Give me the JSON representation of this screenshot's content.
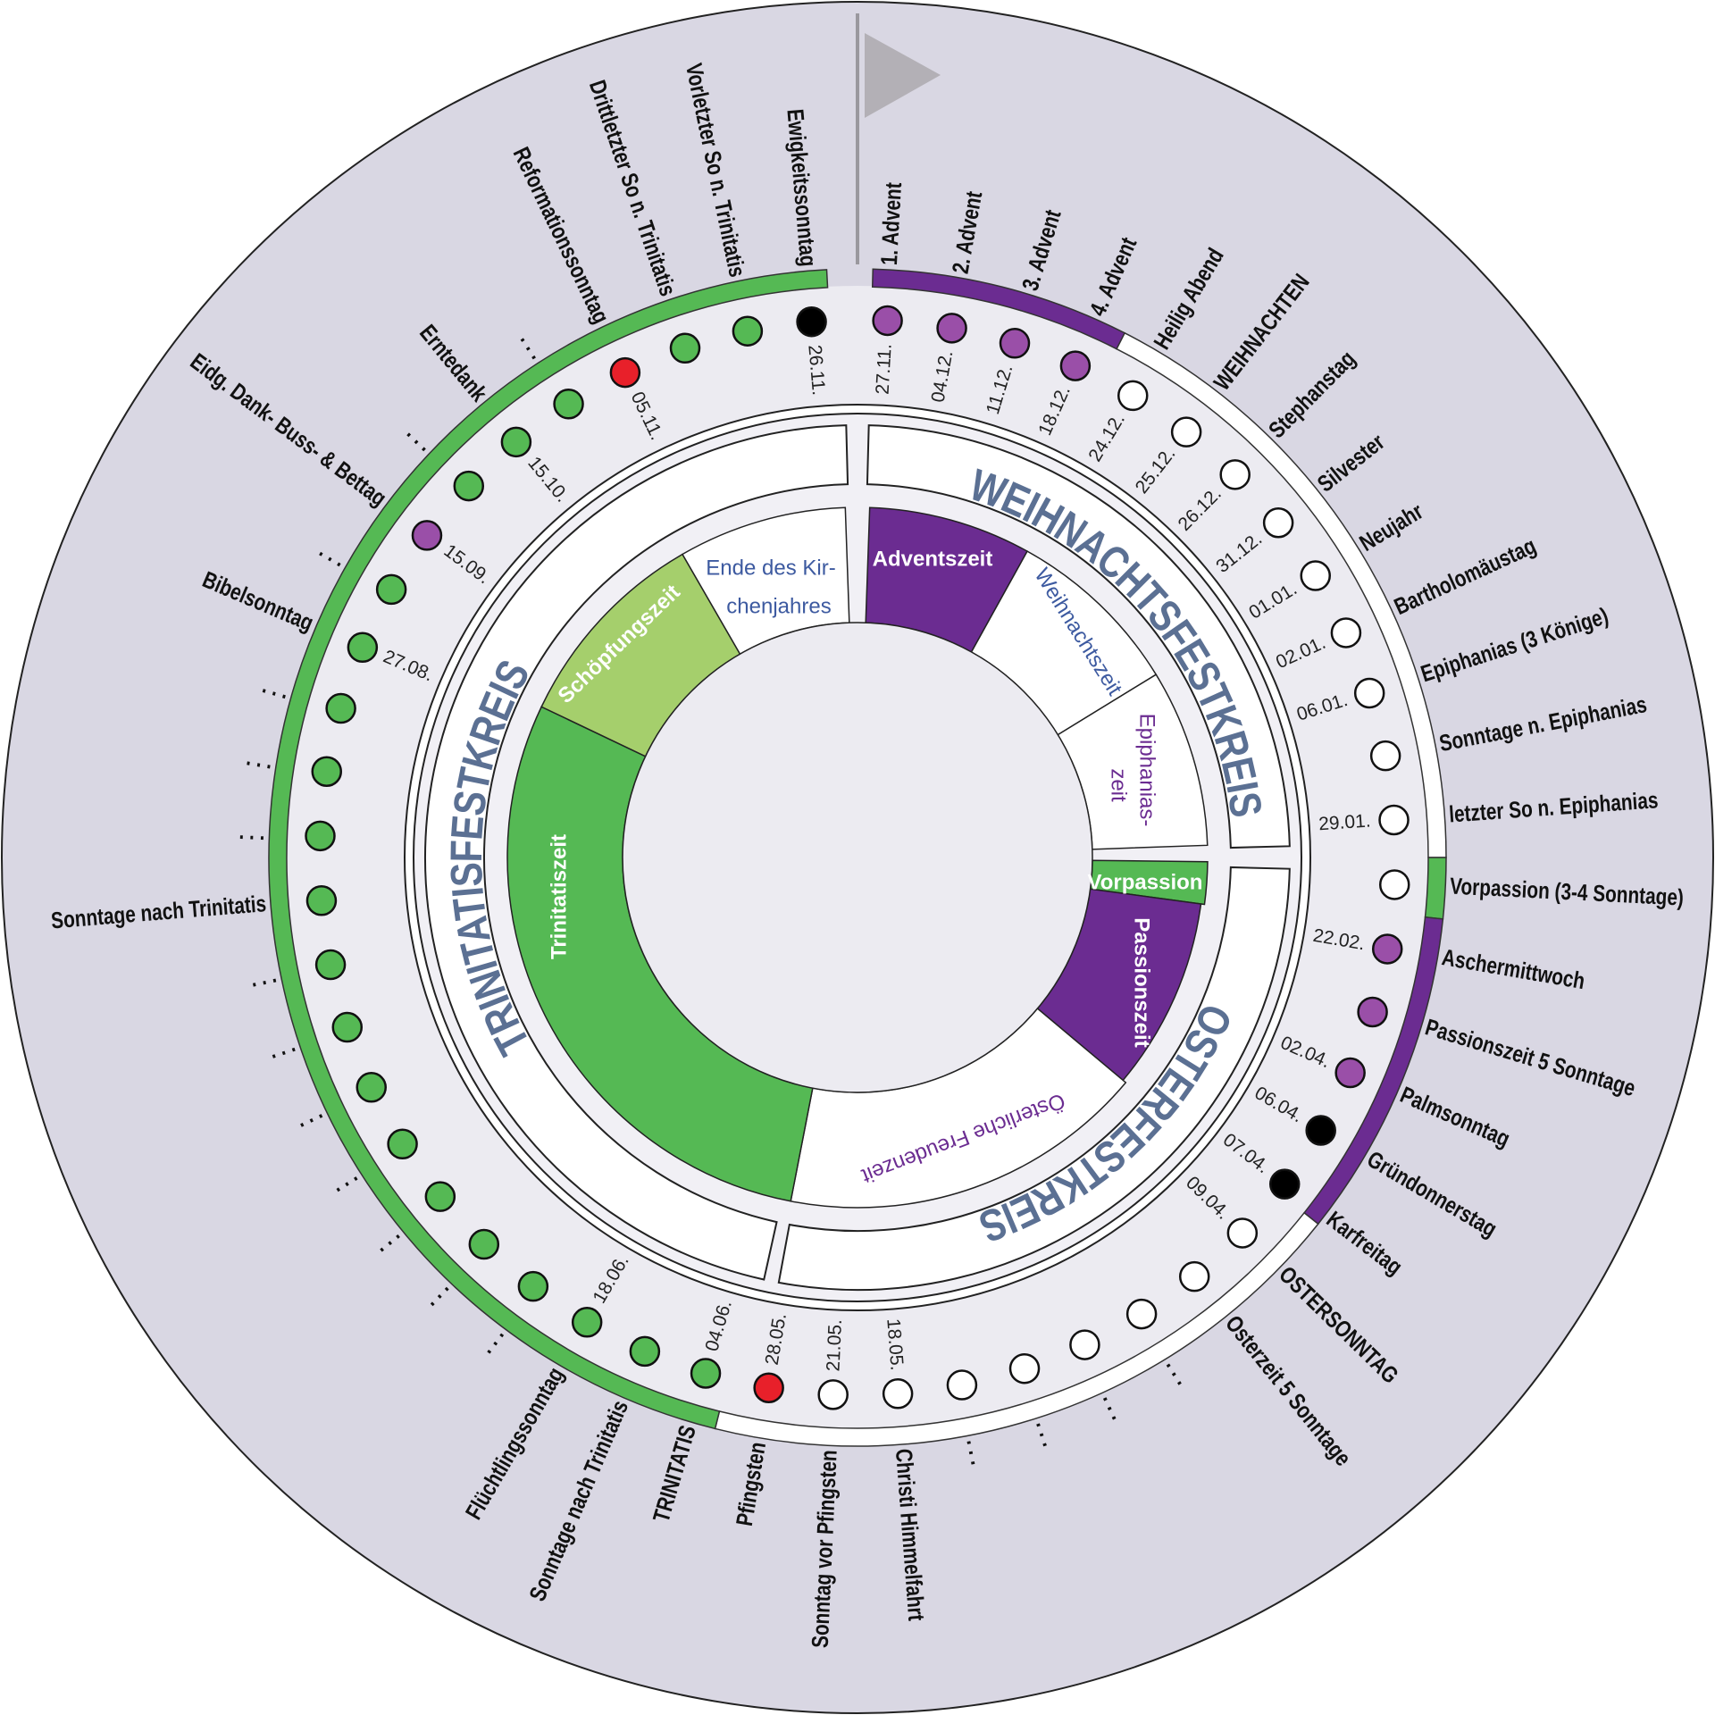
{
  "sundays": [
    {
      "date": "27.11.",
      "label": "1. Advent",
      "color": "#9a4fa8"
    },
    {
      "date": "04.12.",
      "label": "2. Advent",
      "color": "#9a4fa8"
    },
    {
      "date": "11.12.",
      "label": "3. Advent",
      "color": "#9a4fa8"
    },
    {
      "date": "18.12.",
      "label": "4. Advent",
      "color": "#9a4fa8"
    },
    {
      "date": "24.12.",
      "label": "Heilig Abend",
      "color": "#ffffff"
    },
    {
      "date": "25.12.",
      "label": "WEIHNACHTEN",
      "color": "#ffffff"
    },
    {
      "date": "26.12.",
      "label": "Stephanstag",
      "color": "#ffffff"
    },
    {
      "date": "31.12.",
      "label": "Silvester",
      "color": "#ffffff"
    },
    {
      "date": "01.01.",
      "label": "Neujahr",
      "color": "#ffffff"
    },
    {
      "date": "02.01.",
      "label": "Bartholomäustag",
      "color": "#ffffff"
    },
    {
      "date": "06.01.",
      "label": "Epiphanias (3 Könige)",
      "color": "#ffffff"
    },
    {
      "label": "Sonntage n. Epiphanias",
      "color": "#ffffff"
    },
    {
      "date": "29.01.",
      "label": "letzter So n. Epiphanias",
      "color": "#ffffff"
    },
    {
      "label": "Vorpassion (3-4 Sonntage)",
      "color": "#ffffff"
    },
    {
      "date": "22.02.",
      "label": "Aschermittwoch",
      "color": "#9a4fa8"
    },
    {
      "label": "Passionszeit 5 Sonntage",
      "color": "#9a4fa8"
    },
    {
      "date": "02.04.",
      "label": "Palmsonntag",
      "color": "#9a4fa8"
    },
    {
      "date": "06.04.",
      "label": "Gründonnerstag",
      "color": "#000000"
    },
    {
      "date": "07.04.",
      "label": "Karfreitag",
      "color": "#000000"
    },
    {
      "date": "09.04.",
      "label": "OSTERSONNTAG",
      "color": "#ffffff"
    },
    {
      "label": "Osterzeit 5 Sonntage",
      "color": "#ffffff"
    },
    {
      "label": ". . .",
      "color": "#ffffff"
    },
    {
      "label": ". . .",
      "color": "#ffffff"
    },
    {
      "label": ". . .",
      "color": "#ffffff"
    },
    {
      "label": ". . .",
      "color": "#ffffff"
    },
    {
      "date": "18.05.",
      "label": "Christi Himmelfahrt",
      "color": "#ffffff"
    },
    {
      "date": "21.05.",
      "label": "Sonntag vor Pfingsten",
      "color": "#ffffff"
    },
    {
      "date": "28.05.",
      "label": "Pfingsten",
      "color": "#e8202a"
    },
    {
      "date": "04.06.",
      "label": "TRINITATIS",
      "color": "#55b954"
    },
    {
      "label": "Sonntage nach Trinitatis",
      "color": "#55b954"
    },
    {
      "date": "18.06.",
      "label": "Flüchtlingssonntag",
      "color": "#55b954"
    },
    {
      "label": ". . .",
      "color": "#55b954"
    },
    {
      "label": ". . .",
      "color": "#55b954"
    },
    {
      "label": ". . .",
      "color": "#55b954"
    },
    {
      "label": ". . .",
      "color": "#55b954"
    },
    {
      "label": ". . .",
      "color": "#55b954"
    },
    {
      "label": ". . .",
      "color": "#55b954"
    },
    {
      "label": ". . .",
      "color": "#55b954"
    },
    {
      "label": "Sonntage nach Trinitatis",
      "color": "#55b954"
    },
    {
      "label": ". . .",
      "color": "#55b954"
    },
    {
      "label": ". . .",
      "color": "#55b954"
    },
    {
      "label": ". . .",
      "color": "#55b954"
    },
    {
      "date": "27.08.",
      "label": "Bibelsonntag",
      "color": "#55b954"
    },
    {
      "label": ". . .",
      "color": "#55b954"
    },
    {
      "date": "15.09.",
      "label": "Eidg. Dank- Buss- & Bettag",
      "color": "#9a4fa8"
    },
    {
      "label": ". . .",
      "color": "#55b954"
    },
    {
      "date": "15.10.",
      "label": "Erntedank",
      "color": "#55b954"
    },
    {
      "label": ". . .",
      "color": "#55b954"
    },
    {
      "date": "05.11.",
      "label": "Reformationssonntag",
      "color": "#e8202a"
    },
    {
      "label": "Drittletzter So n. Trinitatis",
      "color": "#55b954"
    },
    {
      "label": "Vorletzter So n. Trinitatis",
      "color": "#55b954"
    },
    {
      "date": "26.11.",
      "label": "Ewigkeitssonntag",
      "color": "#000000"
    }
  ],
  "festkreise": [
    "WEIHNACHTSFESTKREIS",
    "OSTERFESTKREIS",
    "TRINITATISFESTKREIS"
  ],
  "seasons": [
    {
      "label": "Adventszeit"
    },
    {
      "label": "Weihnachtszeit"
    },
    {
      "lines": [
        "Epiphanias-",
        "zeit"
      ]
    },
    {
      "label": "Vorpassion"
    },
    {
      "label": "Passionszeit"
    },
    {
      "label": "Österliche Freudenzeit"
    },
    {
      "label": "Trinitatiszeit"
    },
    {
      "label": "Schöpfungszeit"
    },
    {
      "lines": [
        "Ende des Kir-",
        "chenjahres"
      ]
    }
  ]
}
